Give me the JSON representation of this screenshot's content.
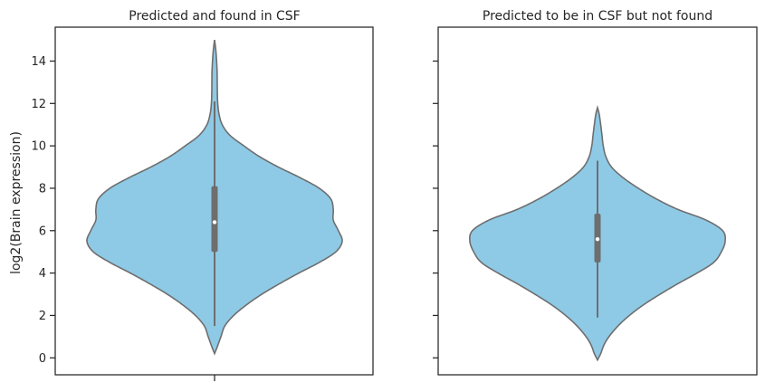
{
  "chart_data": [
    {
      "type": "violin",
      "title": "Predicted and found in CSF",
      "ylabel": "log2(Brain expression)",
      "xlabel": "",
      "ylim": [
        -0.8,
        15.6
      ],
      "yticks": [
        0,
        2,
        4,
        6,
        8,
        10,
        12,
        14
      ],
      "range": [
        0.2,
        15.0
      ],
      "whisker": [
        1.5,
        12.1
      ],
      "quartiles": [
        5.0,
        8.1
      ],
      "median": 6.4,
      "density": [
        [
          0.2,
          0.0
        ],
        [
          0.5,
          0.02
        ],
        [
          1.0,
          0.05
        ],
        [
          1.5,
          0.08
        ],
        [
          2.0,
          0.15
        ],
        [
          2.5,
          0.25
        ],
        [
          3.0,
          0.37
        ],
        [
          3.5,
          0.51
        ],
        [
          4.0,
          0.66
        ],
        [
          4.5,
          0.82
        ],
        [
          5.0,
          0.95
        ],
        [
          5.5,
          1.0
        ],
        [
          6.0,
          0.97
        ],
        [
          6.5,
          0.93
        ],
        [
          7.0,
          0.93
        ],
        [
          7.5,
          0.91
        ],
        [
          8.0,
          0.82
        ],
        [
          8.5,
          0.67
        ],
        [
          9.0,
          0.5
        ],
        [
          9.5,
          0.35
        ],
        [
          10.0,
          0.23
        ],
        [
          10.5,
          0.12
        ],
        [
          11.0,
          0.06
        ],
        [
          11.5,
          0.035
        ],
        [
          12.0,
          0.025
        ],
        [
          12.5,
          0.022
        ],
        [
          13.0,
          0.021
        ],
        [
          13.5,
          0.02
        ],
        [
          14.0,
          0.016
        ],
        [
          14.5,
          0.01
        ],
        [
          15.0,
          0.0
        ]
      ],
      "fill": "#8ecae6",
      "stroke": "#6e6e6e",
      "box": "#6e6e6e"
    },
    {
      "type": "violin",
      "title": "Predicted to be in CSF but not found",
      "ylabel": "",
      "xlabel": "",
      "ylim": [
        -0.8,
        15.6
      ],
      "yticks": [
        0,
        2,
        4,
        6,
        8,
        10,
        12,
        14
      ],
      "range": [
        -0.1,
        11.8
      ],
      "whisker": [
        1.9,
        9.3
      ],
      "quartiles": [
        4.5,
        6.8
      ],
      "median": 5.6,
      "density": [
        [
          -0.1,
          0.0
        ],
        [
          0.2,
          0.025
        ],
        [
          0.6,
          0.05
        ],
        [
          1.0,
          0.09
        ],
        [
          1.5,
          0.16
        ],
        [
          2.0,
          0.25
        ],
        [
          2.5,
          0.36
        ],
        [
          3.0,
          0.49
        ],
        [
          3.5,
          0.63
        ],
        [
          4.0,
          0.78
        ],
        [
          4.5,
          0.91
        ],
        [
          5.0,
          0.97
        ],
        [
          5.5,
          1.0
        ],
        [
          6.0,
          0.98
        ],
        [
          6.5,
          0.85
        ],
        [
          7.0,
          0.63
        ],
        [
          7.5,
          0.46
        ],
        [
          8.0,
          0.32
        ],
        [
          8.5,
          0.2
        ],
        [
          9.0,
          0.11
        ],
        [
          9.5,
          0.065
        ],
        [
          10.0,
          0.045
        ],
        [
          10.5,
          0.035
        ],
        [
          11.0,
          0.025
        ],
        [
          11.5,
          0.013
        ],
        [
          11.8,
          0.0
        ]
      ],
      "fill": "#8ecae6",
      "stroke": "#6e6e6e",
      "box": "#6e6e6e"
    }
  ]
}
